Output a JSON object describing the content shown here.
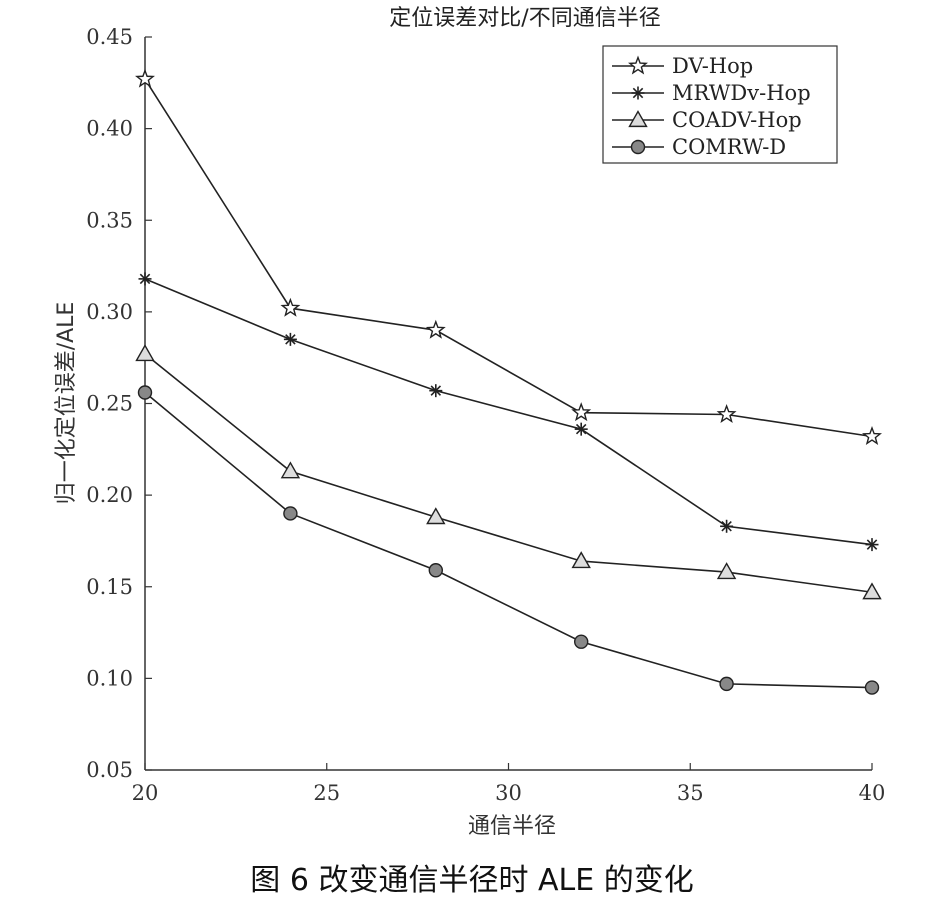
{
  "chart_data": {
    "type": "line",
    "title": "定位误差对比/不同通信半径",
    "xlabel": "通信半径",
    "ylabel": "归一化定位误差/ALE",
    "x": [
      20,
      24,
      28,
      32,
      36,
      40
    ],
    "xlim": [
      20,
      40
    ],
    "ylim": [
      0.05,
      0.45
    ],
    "xticks": [
      20,
      25,
      30,
      35,
      40
    ],
    "yticks": [
      "0.05",
      "0.10",
      "0.15",
      "0.20",
      "0.25",
      "0.30",
      "0.35",
      "0.40",
      "0.45"
    ],
    "grid": false,
    "legend_position": "top-right",
    "series": [
      {
        "name": "DV-Hop",
        "marker": "star",
        "values": [
          0.427,
          0.302,
          0.29,
          0.245,
          0.244,
          0.232
        ]
      },
      {
        "name": "MRWDv-Hop",
        "marker": "asterisk",
        "values": [
          0.318,
          0.285,
          0.257,
          0.236,
          0.183,
          0.173
        ]
      },
      {
        "name": "COADV-Hop",
        "marker": "triangle",
        "values": [
          0.277,
          0.213,
          0.188,
          0.164,
          0.158,
          0.147
        ]
      },
      {
        "name": "COMRW-D",
        "marker": "circle",
        "values": [
          0.256,
          0.19,
          0.159,
          0.12,
          0.097,
          0.095
        ]
      }
    ]
  },
  "caption": "图 6   改变通信半径时 ALE 的变化",
  "colors": {
    "line": "#222222",
    "marker_fill": "#888888",
    "marker_stroke": "#222222",
    "axis": "#333333"
  }
}
